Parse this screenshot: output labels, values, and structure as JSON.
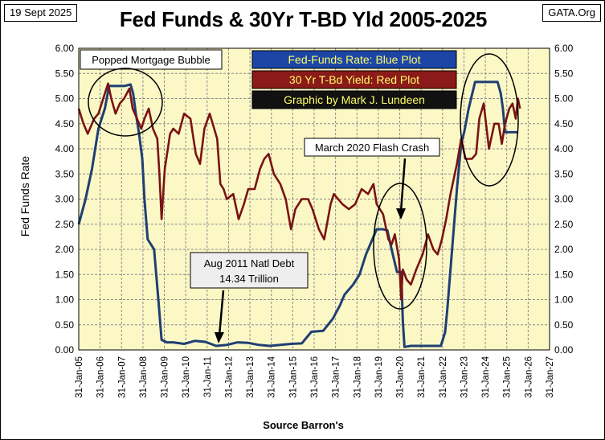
{
  "header": {
    "date": "19 Sept 2025",
    "site": "GATA.Org"
  },
  "chart_data": {
    "type": "line",
    "title": "Fed Funds & 30Yr T-BD Yld 2005-2025",
    "ylabel": "Fed  Funds  Rate",
    "xlabel": "Source Barron's",
    "ylim": [
      0,
      6
    ],
    "xlim": [
      2005.08,
      2027.08
    ],
    "y_ticks": [
      "0.00",
      "0.50",
      "1.00",
      "1.50",
      "2.00",
      "2.50",
      "3.00",
      "3.50",
      "4.00",
      "4.50",
      "5.00",
      "5.50",
      "6.00"
    ],
    "x_ticks": [
      "31-Jan-05",
      "31-Jan-06",
      "31-Jan-07",
      "31-Jan-08",
      "31-Jan-09",
      "31-Jan-10",
      "31-Jan-11",
      "31-Jan-12",
      "31-Jan-13",
      "31-Jan-14",
      "31-Jan-15",
      "31-Jan-16",
      "31-Jan-17",
      "31-Jan-18",
      "31-Jan-19",
      "31-Jan-20",
      "31-Jan-21",
      "31-Jan-22",
      "31-Jan-23",
      "31-Jan-24",
      "31-Jan-25",
      "31-Jan-26",
      "31-Jan-27"
    ],
    "legend": [
      {
        "text": "Fed-Funds Rate: Blue Plot",
        "bg": "#1c45a6",
        "fg": "#ffff66"
      },
      {
        "text": "30 Yr T-Bd Yield: Red Plot",
        "bg": "#8b1a1a",
        "fg": "#ffff66"
      },
      {
        "text": "Graphic by Mark J. Lundeen",
        "bg": "#111111",
        "fg": "#ffff66"
      }
    ],
    "annotations": {
      "popped": "Popped Mortgage  Bubble",
      "flash": "March  2020 Flash Crash",
      "aug2011_line1": "Aug 2011  Natl Debt",
      "aug2011_line2": "14.34  Trillion"
    },
    "colors": {
      "fed_funds": "#1f3f73",
      "treasury": "#7a1313",
      "plot_bg": "#fbf8c6",
      "grid": "#8c8c8c"
    },
    "series": [
      {
        "name": "Fed Funds Rate",
        "x": [
          2005.08,
          2005.4,
          2005.7,
          2006.0,
          2006.3,
          2006.5,
          2006.8,
          2007.2,
          2007.5,
          2007.62,
          2007.75,
          2007.9,
          2008.05,
          2008.15,
          2008.3,
          2008.6,
          2008.8,
          2008.95,
          2009.2,
          2009.5,
          2010.0,
          2010.5,
          2011.0,
          2011.5,
          2012.0,
          2012.5,
          2013.0,
          2013.5,
          2014.0,
          2014.5,
          2015.0,
          2015.5,
          2015.95,
          2016.5,
          2016.95,
          2017.3,
          2017.5,
          2017.9,
          2018.2,
          2018.5,
          2018.8,
          2019.0,
          2019.3,
          2019.5,
          2019.7,
          2019.95,
          2020.15,
          2020.22,
          2020.3,
          2020.6,
          2021.0,
          2021.5,
          2022.0,
          2022.2,
          2022.3,
          2022.45,
          2022.6,
          2022.75,
          2022.95,
          2023.1,
          2023.3,
          2023.6,
          2023.8,
          2024.0,
          2024.3,
          2024.65,
          2024.8,
          2024.9,
          2025.0,
          2025.3,
          2025.6
        ],
        "values": [
          2.5,
          3.0,
          3.6,
          4.4,
          4.8,
          5.25,
          5.25,
          5.25,
          5.28,
          5.1,
          4.7,
          4.3,
          3.8,
          3.0,
          2.2,
          2.0,
          1.0,
          0.2,
          0.15,
          0.15,
          0.12,
          0.18,
          0.16,
          0.08,
          0.1,
          0.15,
          0.14,
          0.1,
          0.08,
          0.1,
          0.12,
          0.13,
          0.36,
          0.38,
          0.62,
          0.9,
          1.1,
          1.3,
          1.5,
          1.9,
          2.2,
          2.4,
          2.4,
          2.38,
          2.0,
          1.55,
          1.55,
          0.6,
          0.06,
          0.08,
          0.08,
          0.08,
          0.08,
          0.35,
          0.8,
          1.6,
          2.4,
          3.2,
          4.1,
          4.35,
          4.8,
          5.33,
          5.33,
          5.33,
          5.33,
          5.33,
          5.1,
          4.8,
          4.33,
          4.33,
          4.33
        ]
      },
      {
        "name": "30 Yr T-Bd Yield",
        "x": [
          2005.08,
          2005.3,
          2005.5,
          2005.8,
          2006.0,
          2006.3,
          2006.45,
          2006.6,
          2006.8,
          2007.0,
          2007.2,
          2007.45,
          2007.6,
          2007.8,
          2008.0,
          2008.15,
          2008.35,
          2008.55,
          2008.75,
          2008.85,
          2008.95,
          2009.1,
          2009.35,
          2009.5,
          2009.75,
          2010.0,
          2010.3,
          2010.55,
          2010.75,
          2010.95,
          2011.2,
          2011.55,
          2011.7,
          2011.85,
          2012.0,
          2012.3,
          2012.55,
          2012.8,
          2013.0,
          2013.3,
          2013.55,
          2013.75,
          2013.95,
          2014.2,
          2014.5,
          2014.75,
          2015.0,
          2015.2,
          2015.5,
          2015.8,
          2016.0,
          2016.3,
          2016.55,
          2016.85,
          2017.0,
          2017.4,
          2017.7,
          2018.0,
          2018.3,
          2018.6,
          2018.85,
          2019.0,
          2019.3,
          2019.55,
          2019.7,
          2019.85,
          2020.05,
          2020.15,
          2020.22,
          2020.4,
          2020.6,
          2020.85,
          2021.15,
          2021.4,
          2021.65,
          2021.85,
          2022.05,
          2022.25,
          2022.45,
          2022.75,
          2022.95,
          2023.15,
          2023.45,
          2023.65,
          2023.8,
          2024.0,
          2024.25,
          2024.5,
          2024.7,
          2024.85,
          2025.0,
          2025.2,
          2025.35,
          2025.5,
          2025.6,
          2025.7
        ],
        "values": [
          4.8,
          4.5,
          4.3,
          4.6,
          4.7,
          5.1,
          5.3,
          5.0,
          4.7,
          4.9,
          5.0,
          5.2,
          4.8,
          4.6,
          4.4,
          4.6,
          4.8,
          4.4,
          4.2,
          3.5,
          2.6,
          3.6,
          4.3,
          4.4,
          4.3,
          4.7,
          4.6,
          3.9,
          3.7,
          4.4,
          4.7,
          4.2,
          3.3,
          3.2,
          3.0,
          3.1,
          2.6,
          2.9,
          3.2,
          3.2,
          3.6,
          3.8,
          3.9,
          3.5,
          3.3,
          3.0,
          2.4,
          2.8,
          3.0,
          3.0,
          2.8,
          2.4,
          2.2,
          2.9,
          3.1,
          2.9,
          2.8,
          2.9,
          3.2,
          3.1,
          3.3,
          2.9,
          2.7,
          2.2,
          2.1,
          2.3,
          1.8,
          1.0,
          1.6,
          1.4,
          1.3,
          1.6,
          1.9,
          2.3,
          2.0,
          1.9,
          2.2,
          2.6,
          3.1,
          3.7,
          4.2,
          3.8,
          3.8,
          3.9,
          4.6,
          4.9,
          4.0,
          4.5,
          4.5,
          4.1,
          4.5,
          4.8,
          4.9,
          4.6,
          5.0,
          4.8
        ]
      }
    ]
  }
}
